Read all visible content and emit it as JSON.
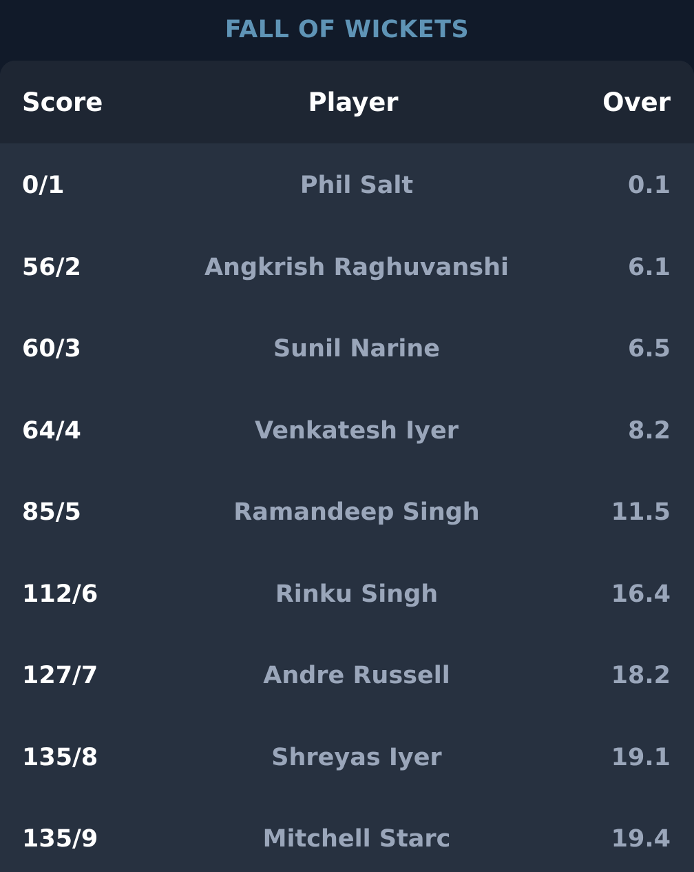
{
  "section": {
    "title": "FALL OF WICKETS"
  },
  "table": {
    "headers": {
      "score": "Score",
      "player": "Player",
      "over": "Over"
    },
    "rows": [
      {
        "score": "0/1",
        "player": "Phil Salt",
        "over": "0.1"
      },
      {
        "score": "56/2",
        "player": "Angkrish Raghuvanshi",
        "over": "6.1"
      },
      {
        "score": "60/3",
        "player": "Sunil Narine",
        "over": "6.5"
      },
      {
        "score": "64/4",
        "player": "Venkatesh Iyer",
        "over": "8.2"
      },
      {
        "score": "85/5",
        "player": "Ramandeep Singh",
        "over": "11.5"
      },
      {
        "score": "112/6",
        "player": "Rinku Singh",
        "over": "16.4"
      },
      {
        "score": "127/7",
        "player": "Andre Russell",
        "over": "18.2"
      },
      {
        "score": "135/8",
        "player": "Shreyas Iyer",
        "over": "19.1"
      },
      {
        "score": "135/9",
        "player": "Mitchell Starc",
        "over": "19.4"
      }
    ]
  },
  "colors": {
    "background": "#111a29",
    "card": "#273140",
    "header": "#1e2633",
    "title_accent": "#5f94b6",
    "muted_text": "#9aa6ba"
  }
}
